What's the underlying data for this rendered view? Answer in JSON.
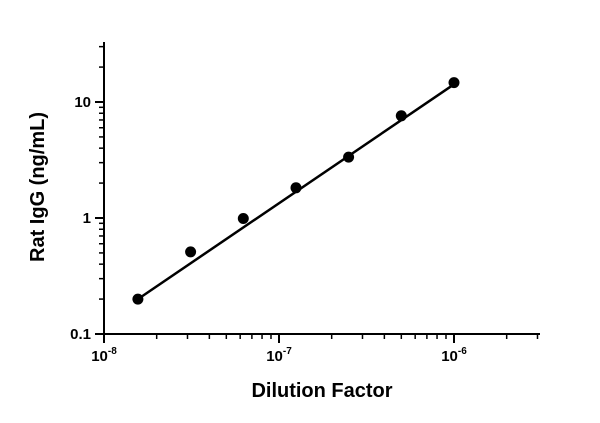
{
  "chart_data": {
    "type": "scatter",
    "title": "",
    "xlabel": "Dilution Factor",
    "ylabel": "Rat IgG (ng/mL)",
    "x_scale": "log",
    "y_scale": "log",
    "xlim": [
      1e-08,
      3e-06
    ],
    "ylim": [
      0.1,
      30
    ],
    "grid": false,
    "x_ticks": [
      {
        "value": 1e-08,
        "base": "10",
        "exp": "-8"
      },
      {
        "value": 1e-07,
        "base": "10",
        "exp": "-7"
      },
      {
        "value": 1e-06,
        "base": "10",
        "exp": "-6"
      }
    ],
    "y_ticks": [
      {
        "value": 0.1,
        "label": "0.1"
      },
      {
        "value": 1,
        "label": "1"
      },
      {
        "value": 10,
        "label": "10"
      }
    ],
    "series": [
      {
        "points": [
          {
            "x": 1.5625e-08,
            "y": 0.2
          },
          {
            "x": 3.125e-08,
            "y": 0.51
          },
          {
            "x": 6.25e-08,
            "y": 0.99
          },
          {
            "x": 1.25e-07,
            "y": 1.82
          },
          {
            "x": 2.5e-07,
            "y": 3.35
          },
          {
            "x": 5e-07,
            "y": 7.6
          },
          {
            "x": 1e-06,
            "y": 14.7
          }
        ],
        "fit_line": [
          {
            "x": 1.5625e-08,
            "y": 0.2
          },
          {
            "x": 1e-06,
            "y": 14.2
          }
        ]
      }
    ],
    "colors": {
      "marks": "#000000",
      "background": "#ffffff"
    }
  }
}
